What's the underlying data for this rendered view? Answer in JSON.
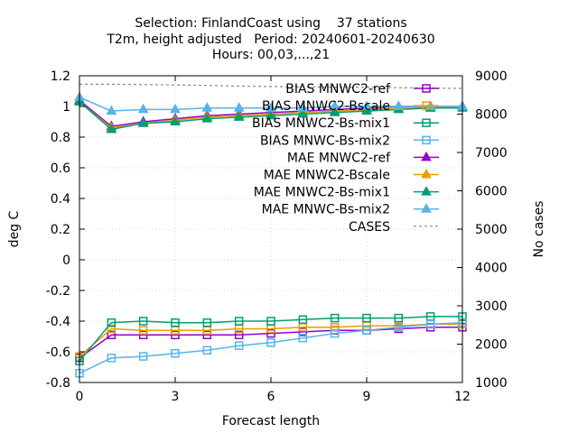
{
  "chart_data": {
    "type": "line",
    "title_lines": [
      "Selection: FinlandCoast using    37 stations",
      "T2m, height adjusted   Period: 20240601-20240630",
      "Hours: 00,03,...,21"
    ],
    "xlabel": "Forecast length",
    "ylabel": "deg C",
    "y2label": "No cases",
    "xlim": [
      0,
      12
    ],
    "ylim": [
      -0.8,
      1.2
    ],
    "y2lim": [
      1000,
      9000
    ],
    "xticks": [
      "0",
      "3",
      "6",
      "9",
      "12"
    ],
    "yticks": [
      "-0.8",
      "-0.6",
      "-0.4",
      "-0.2",
      "0",
      "0.2",
      "0.4",
      "0.6",
      "0.8",
      "1",
      "1.2"
    ],
    "y2ticks": [
      "1000",
      "2000",
      "3000",
      "4000",
      "5000",
      "6000",
      "7000",
      "8000",
      "9000"
    ],
    "legend_position": "top-right",
    "x": [
      0,
      1,
      2,
      3,
      4,
      5,
      6,
      7,
      8,
      9,
      10,
      11,
      12
    ],
    "series": [
      {
        "name": "BIAS MNWC2-ref",
        "color": "#9400d3",
        "marker": "square-open",
        "axis": "y",
        "values": [
          -0.64,
          -0.49,
          -0.49,
          -0.49,
          -0.49,
          -0.49,
          -0.48,
          -0.47,
          -0.46,
          -0.46,
          -0.45,
          -0.44,
          -0.44
        ]
      },
      {
        "name": "BIAS MNWC2-Bscale",
        "color": "#e69f00",
        "marker": "square-open",
        "axis": "y",
        "values": [
          -0.63,
          -0.45,
          -0.46,
          -0.46,
          -0.46,
          -0.45,
          -0.45,
          -0.44,
          -0.44,
          -0.43,
          -0.43,
          -0.42,
          -0.42
        ]
      },
      {
        "name": "BIAS MNWC2-Bs-mix1",
        "color": "#009e73",
        "marker": "square-open",
        "axis": "y",
        "values": [
          -0.66,
          -0.41,
          -0.4,
          -0.41,
          -0.41,
          -0.4,
          -0.4,
          -0.39,
          -0.38,
          -0.38,
          -0.38,
          -0.37,
          -0.37
        ]
      },
      {
        "name": "BIAS MNWC-Bs-mix2",
        "color": "#56b4e9",
        "marker": "square-open",
        "axis": "y",
        "values": [
          -0.74,
          -0.64,
          -0.63,
          -0.61,
          -0.59,
          -0.56,
          -0.54,
          -0.51,
          -0.48,
          -0.46,
          -0.44,
          -0.42,
          -0.41
        ]
      },
      {
        "name": "MAE MNWC2-ref",
        "color": "#9400d3",
        "marker": "triangle",
        "axis": "y",
        "values": [
          1.04,
          0.87,
          0.9,
          0.92,
          0.94,
          0.95,
          0.96,
          0.97,
          0.98,
          0.99,
          1.0,
          1.0,
          1.0
        ]
      },
      {
        "name": "MAE MNWC2-Bscale",
        "color": "#e69f00",
        "marker": "triangle",
        "axis": "y",
        "values": [
          1.03,
          0.86,
          0.89,
          0.91,
          0.93,
          0.94,
          0.95,
          0.96,
          0.97,
          0.98,
          0.99,
          0.99,
          1.0
        ]
      },
      {
        "name": "MAE MNWC2-Bs-mix1",
        "color": "#009e73",
        "marker": "triangle",
        "axis": "y",
        "values": [
          1.03,
          0.85,
          0.89,
          0.9,
          0.92,
          0.93,
          0.94,
          0.95,
          0.96,
          0.97,
          0.98,
          0.99,
          0.99
        ]
      },
      {
        "name": "MAE MNWC-Bs-mix2",
        "color": "#56b4e9",
        "marker": "triangle",
        "axis": "y",
        "values": [
          1.06,
          0.97,
          0.98,
          0.98,
          0.99,
          0.99,
          0.99,
          0.99,
          1.0,
          1.0,
          1.0,
          1.0,
          1.0
        ]
      },
      {
        "name": "CASES",
        "color": "#888888",
        "marker": "none",
        "dashed": true,
        "axis": "y2",
        "values": [
          8780,
          8780,
          8770,
          8760,
          8750,
          8730,
          8720,
          8710,
          8700,
          8700,
          8690,
          8680,
          8670
        ]
      }
    ]
  }
}
